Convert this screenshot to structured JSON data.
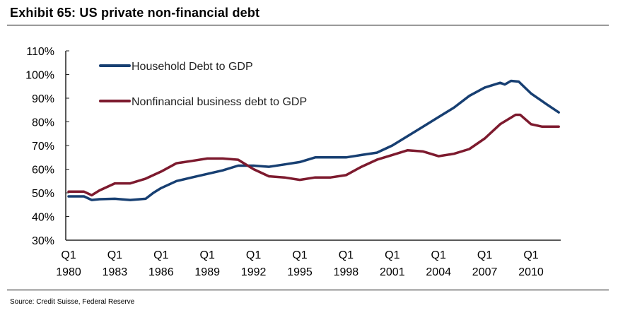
{
  "chart_data": {
    "type": "line",
    "title": "Exhibit 65: US private non-financial debt",
    "source": "Source: Credit Suisse, Federal Reserve",
    "xlabel": "",
    "ylabel": "",
    "ylim": [
      30,
      110
    ],
    "xlim": [
      1980,
      2012
    ],
    "y_ticks": [
      "30%",
      "40%",
      "50%",
      "60%",
      "70%",
      "80%",
      "90%",
      "100%",
      "110%"
    ],
    "x_ticks": [
      {
        "year": 1980,
        "q": "Q1",
        "label": "1980"
      },
      {
        "year": 1983,
        "q": "Q1",
        "label": "1983"
      },
      {
        "year": 1986,
        "q": "Q1",
        "label": "1986"
      },
      {
        "year": 1989,
        "q": "Q1",
        "label": "1989"
      },
      {
        "year": 1992,
        "q": "Q1",
        "label": "1992"
      },
      {
        "year": 1995,
        "q": "Q1",
        "label": "1995"
      },
      {
        "year": 1998,
        "q": "Q1",
        "label": "1998"
      },
      {
        "year": 2001,
        "q": "Q1",
        "label": "2001"
      },
      {
        "year": 2004,
        "q": "Q1",
        "label": "2004"
      },
      {
        "year": 2007,
        "q": "Q1",
        "label": "2007"
      },
      {
        "year": 2010,
        "q": "Q1",
        "label": "2010"
      }
    ],
    "grid": false,
    "legend_position": "top-left",
    "series": [
      {
        "name": "Household Debt to GDP",
        "color": "#173f72",
        "x": [
          1980,
          1981,
          1981.5,
          1982,
          1983,
          1984,
          1985,
          1985.5,
          1986,
          1987,
          1988,
          1989,
          1990,
          1991,
          1992,
          1993,
          1994,
          1995,
          1996,
          1997,
          1998,
          1999,
          2000,
          2001,
          2002,
          2003,
          2004,
          2005,
          2006,
          2007,
          2008,
          2008.3,
          2008.7,
          2009.2,
          2010,
          2011,
          2011.8
        ],
        "values": [
          48.5,
          48.5,
          47,
          47.3,
          47.5,
          47,
          47.5,
          50,
          52,
          55,
          56.5,
          58,
          59.5,
          61.5,
          61.5,
          61,
          62,
          63,
          65,
          65,
          65,
          66,
          67,
          70,
          74,
          78,
          82,
          86,
          91,
          94.5,
          96.5,
          95.8,
          97.3,
          97,
          92,
          87.5,
          84
        ]
      },
      {
        "name": "Nonfinancial business debt to GDP",
        "color": "#7d1a2e",
        "x": [
          1980,
          1981,
          1981.5,
          1982,
          1983,
          1984,
          1985,
          1986,
          1987,
          1988,
          1989,
          1990,
          1991,
          1992,
          1993,
          1994,
          1995,
          1996,
          1997,
          1998,
          1999,
          2000,
          2001,
          2002,
          2003,
          2004,
          2005,
          2006,
          2007,
          2008,
          2009,
          2009.3,
          2010,
          2010.7,
          2011.8
        ],
        "values": [
          50.5,
          50.5,
          49,
          51,
          54,
          54,
          56,
          59,
          62.5,
          63.5,
          64.5,
          64.5,
          64,
          60,
          57,
          56.5,
          55.5,
          56.5,
          56.5,
          57.5,
          61,
          64,
          66,
          68,
          67.5,
          65.5,
          66.5,
          68.5,
          73,
          79,
          83,
          83,
          79,
          78,
          78
        ]
      }
    ]
  }
}
